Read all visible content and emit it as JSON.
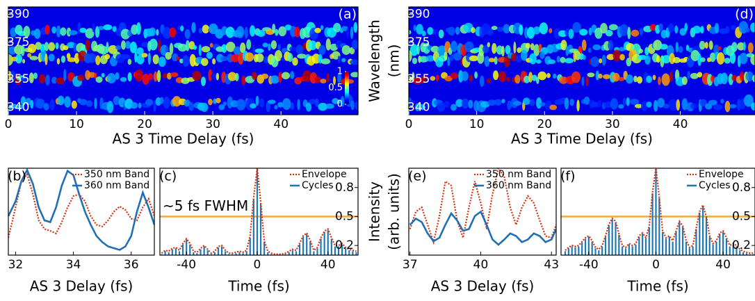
{
  "chart_data": [
    {
      "type": "heatmap",
      "label": "(a)",
      "xlabel": "AS 3 Time Delay (fs)",
      "xlim": [
        0,
        51.3
      ],
      "xticks": [
        0,
        10,
        20,
        30,
        40
      ],
      "ylim": [
        336,
        394
      ],
      "yticks": [
        340,
        355,
        375,
        390
      ],
      "colorscale": "jet",
      "colorbar_ticks": [
        0,
        0.5,
        1
      ]
    },
    {
      "type": "line",
      "label": "(b)",
      "xlabel": "AS 3 Delay (fs)",
      "x": [
        31.75,
        32.0,
        32.2,
        32.4,
        32.6,
        32.8,
        33.0,
        33.2,
        33.4,
        33.6,
        33.8,
        34.0,
        34.2,
        34.4,
        34.6,
        34.8,
        35.0,
        35.2,
        35.4,
        35.6,
        35.8,
        36.0,
        36.2,
        36.4,
        36.6,
        36.8
      ],
      "xlim": [
        31.75,
        36.8
      ],
      "xticks": [
        32,
        34,
        36
      ],
      "ylim": [
        0,
        1
      ],
      "series": [
        {
          "name": "350 nm Band",
          "color": "#d6300c",
          "style": "dotted",
          "values": [
            0.2,
            0.55,
            0.85,
            0.93,
            0.7,
            0.4,
            0.3,
            0.28,
            0.25,
            0.38,
            0.55,
            0.68,
            0.7,
            0.62,
            0.45,
            0.35,
            0.33,
            0.4,
            0.5,
            0.56,
            0.52,
            0.42,
            0.4,
            0.55,
            0.65,
            0.45
          ]
        },
        {
          "name": "360 nm Band",
          "color": "#1f6fb4",
          "style": "solid",
          "values": [
            0.45,
            0.62,
            0.85,
            0.98,
            0.82,
            0.55,
            0.4,
            0.38,
            0.55,
            0.8,
            0.97,
            0.92,
            0.7,
            0.5,
            0.35,
            0.22,
            0.15,
            0.1,
            0.08,
            0.06,
            0.1,
            0.22,
            0.5,
            0.72,
            0.55,
            0.35
          ]
        }
      ]
    },
    {
      "type": "stem",
      "label": "(c)",
      "xlabel": "Time (fs)",
      "annotation": "~5 fs FWHM",
      "x": [
        -54,
        -52,
        -50,
        -48,
        -46,
        -44,
        -42,
        -40,
        -38,
        -36,
        -34,
        -32,
        -30,
        -28,
        -26,
        -24,
        -22,
        -20,
        -18,
        -16,
        -14,
        -12,
        -10,
        -8,
        -6,
        -4,
        -2,
        0,
        2,
        4,
        6,
        8,
        10,
        12,
        14,
        16,
        18,
        20,
        22,
        24,
        26,
        28,
        30,
        32,
        34,
        36,
        38,
        40,
        42,
        44,
        46,
        48,
        50,
        52,
        54,
        56
      ],
      "xlim": [
        -55,
        57
      ],
      "xticks": [
        -40,
        0,
        40
      ],
      "ylim": [
        0.1,
        1.0
      ],
      "yticks": [
        0.2,
        0.5,
        0.8
      ],
      "hline": {
        "value": 0.5,
        "color": "#f2a93b"
      },
      "series": [
        {
          "name": "Envelope",
          "color": "#d6300c",
          "style": "dotted",
          "values": [
            0.12,
            0.15,
            0.14,
            0.17,
            0.18,
            0.15,
            0.22,
            0.27,
            0.22,
            0.14,
            0.13,
            0.17,
            0.2,
            0.16,
            0.12,
            0.14,
            0.19,
            0.2,
            0.15,
            0.12,
            0.12,
            0.13,
            0.14,
            0.13,
            0.15,
            0.3,
            0.7,
            1.0,
            0.65,
            0.25,
            0.14,
            0.12,
            0.11,
            0.11,
            0.11,
            0.12,
            0.14,
            0.16,
            0.15,
            0.22,
            0.3,
            0.33,
            0.25,
            0.15,
            0.18,
            0.28,
            0.35,
            0.37,
            0.28,
            0.2,
            0.2,
            0.22,
            0.18,
            0.16,
            0.15,
            0.14
          ]
        },
        {
          "name": "Cycles",
          "color": "#1f78b4",
          "style": "stem",
          "values": [
            0.11,
            0.14,
            0.13,
            0.16,
            0.17,
            0.14,
            0.21,
            0.26,
            0.21,
            0.13,
            0.12,
            0.16,
            0.19,
            0.15,
            0.11,
            0.13,
            0.18,
            0.19,
            0.14,
            0.11,
            0.11,
            0.12,
            0.13,
            0.12,
            0.14,
            0.28,
            0.68,
            0.99,
            0.63,
            0.24,
            0.13,
            0.11,
            0.1,
            0.1,
            0.1,
            0.11,
            0.13,
            0.15,
            0.14,
            0.21,
            0.29,
            0.32,
            0.24,
            0.14,
            0.17,
            0.27,
            0.34,
            0.36,
            0.27,
            0.19,
            0.19,
            0.21,
            0.17,
            0.15,
            0.14,
            0.13
          ]
        }
      ]
    },
    {
      "type": "heatmap",
      "label": "(d)",
      "xlabel": "AS 3 Time Delay (fs)",
      "ylabel": [
        "Wavelength",
        "(nm)"
      ],
      "xlim": [
        0,
        51
      ],
      "xticks": [
        0,
        10,
        20,
        30,
        40
      ],
      "ylim": [
        336,
        394
      ],
      "yticks": [
        340,
        355,
        375,
        390
      ],
      "colorscale": "jet"
    },
    {
      "type": "line",
      "label": "(e)",
      "xlabel": "AS 3 Delay (fs)",
      "ylabel": [
        "Intensity",
        "(arb. units)"
      ],
      "x": [
        37.0,
        37.25,
        37.5,
        37.75,
        38.0,
        38.25,
        38.5,
        38.75,
        39.0,
        39.25,
        39.5,
        39.75,
        40.0,
        40.25,
        40.5,
        40.75,
        41.0,
        41.25,
        41.5,
        41.75,
        42.0,
        42.25,
        42.5,
        42.75,
        43.0,
        43.2
      ],
      "xlim": [
        36.95,
        43.2
      ],
      "xticks": [
        37,
        40,
        43
      ],
      "ylim": [
        0,
        1
      ],
      "series": [
        {
          "name": "350 nm Band",
          "color": "#d6300c",
          "style": "dotted",
          "values": [
            0.3,
            0.5,
            0.55,
            0.35,
            0.15,
            0.45,
            0.85,
            0.8,
            0.4,
            0.2,
            0.55,
            0.85,
            0.6,
            0.3,
            0.7,
            1.0,
            0.9,
            0.55,
            0.35,
            0.55,
            0.68,
            0.6,
            0.4,
            0.22,
            0.2,
            0.35
          ]
        },
        {
          "name": "360 nm Band",
          "color": "#1f6fb4",
          "style": "solid",
          "values": [
            0.35,
            0.42,
            0.38,
            0.25,
            0.16,
            0.2,
            0.35,
            0.48,
            0.4,
            0.28,
            0.3,
            0.45,
            0.5,
            0.35,
            0.18,
            0.12,
            0.18,
            0.25,
            0.22,
            0.15,
            0.18,
            0.25,
            0.22,
            0.15,
            0.18,
            0.3
          ]
        }
      ]
    },
    {
      "type": "stem",
      "label": "(f)",
      "xlabel": "Time (fs)",
      "x": [
        -54,
        -52,
        -50,
        -48,
        -46,
        -44,
        -42,
        -40,
        -38,
        -36,
        -34,
        -32,
        -30,
        -28,
        -26,
        -24,
        -22,
        -20,
        -18,
        -16,
        -14,
        -12,
        -10,
        -8,
        -6,
        -4,
        -2,
        0,
        2,
        4,
        6,
        8,
        10,
        12,
        14,
        16,
        18,
        20,
        22,
        24,
        26,
        28,
        30,
        32,
        34,
        36,
        38,
        40,
        42,
        44,
        46,
        48,
        50,
        52,
        54,
        56,
        58
      ],
      "xlim": [
        -56.5,
        59
      ],
      "xticks": [
        -40,
        0,
        40
      ],
      "ylim": [
        0.1,
        1.0
      ],
      "yticks": [
        0.2,
        0.5,
        0.8
      ],
      "hline": {
        "value": 0.5,
        "color": "#f2a93b"
      },
      "series": [
        {
          "name": "Envelope",
          "color": "#d6300c",
          "style": "dotted",
          "values": [
            0.15,
            0.18,
            0.2,
            0.19,
            0.2,
            0.24,
            0.28,
            0.3,
            0.25,
            0.18,
            0.16,
            0.2,
            0.3,
            0.42,
            0.48,
            0.45,
            0.32,
            0.2,
            0.18,
            0.22,
            0.2,
            0.22,
            0.3,
            0.33,
            0.28,
            0.4,
            0.75,
            1.0,
            0.7,
            0.35,
            0.28,
            0.3,
            0.25,
            0.35,
            0.45,
            0.4,
            0.25,
            0.18,
            0.2,
            0.38,
            0.55,
            0.62,
            0.5,
            0.3,
            0.22,
            0.25,
            0.33,
            0.35,
            0.28,
            0.2,
            0.22,
            0.2,
            0.16,
            0.14,
            0.13,
            0.12,
            0.12
          ]
        },
        {
          "name": "Cycles",
          "color": "#1f78b4",
          "style": "stem",
          "values": [
            0.14,
            0.17,
            0.19,
            0.18,
            0.19,
            0.23,
            0.27,
            0.29,
            0.24,
            0.17,
            0.15,
            0.19,
            0.29,
            0.41,
            0.47,
            0.44,
            0.31,
            0.19,
            0.17,
            0.21,
            0.19,
            0.21,
            0.29,
            0.32,
            0.27,
            0.39,
            0.74,
            0.99,
            0.69,
            0.34,
            0.27,
            0.29,
            0.24,
            0.34,
            0.44,
            0.39,
            0.24,
            0.17,
            0.19,
            0.37,
            0.54,
            0.61,
            0.49,
            0.29,
            0.21,
            0.24,
            0.32,
            0.34,
            0.27,
            0.19,
            0.21,
            0.19,
            0.15,
            0.13,
            0.12,
            0.11,
            0.11
          ]
        }
      ]
    }
  ]
}
